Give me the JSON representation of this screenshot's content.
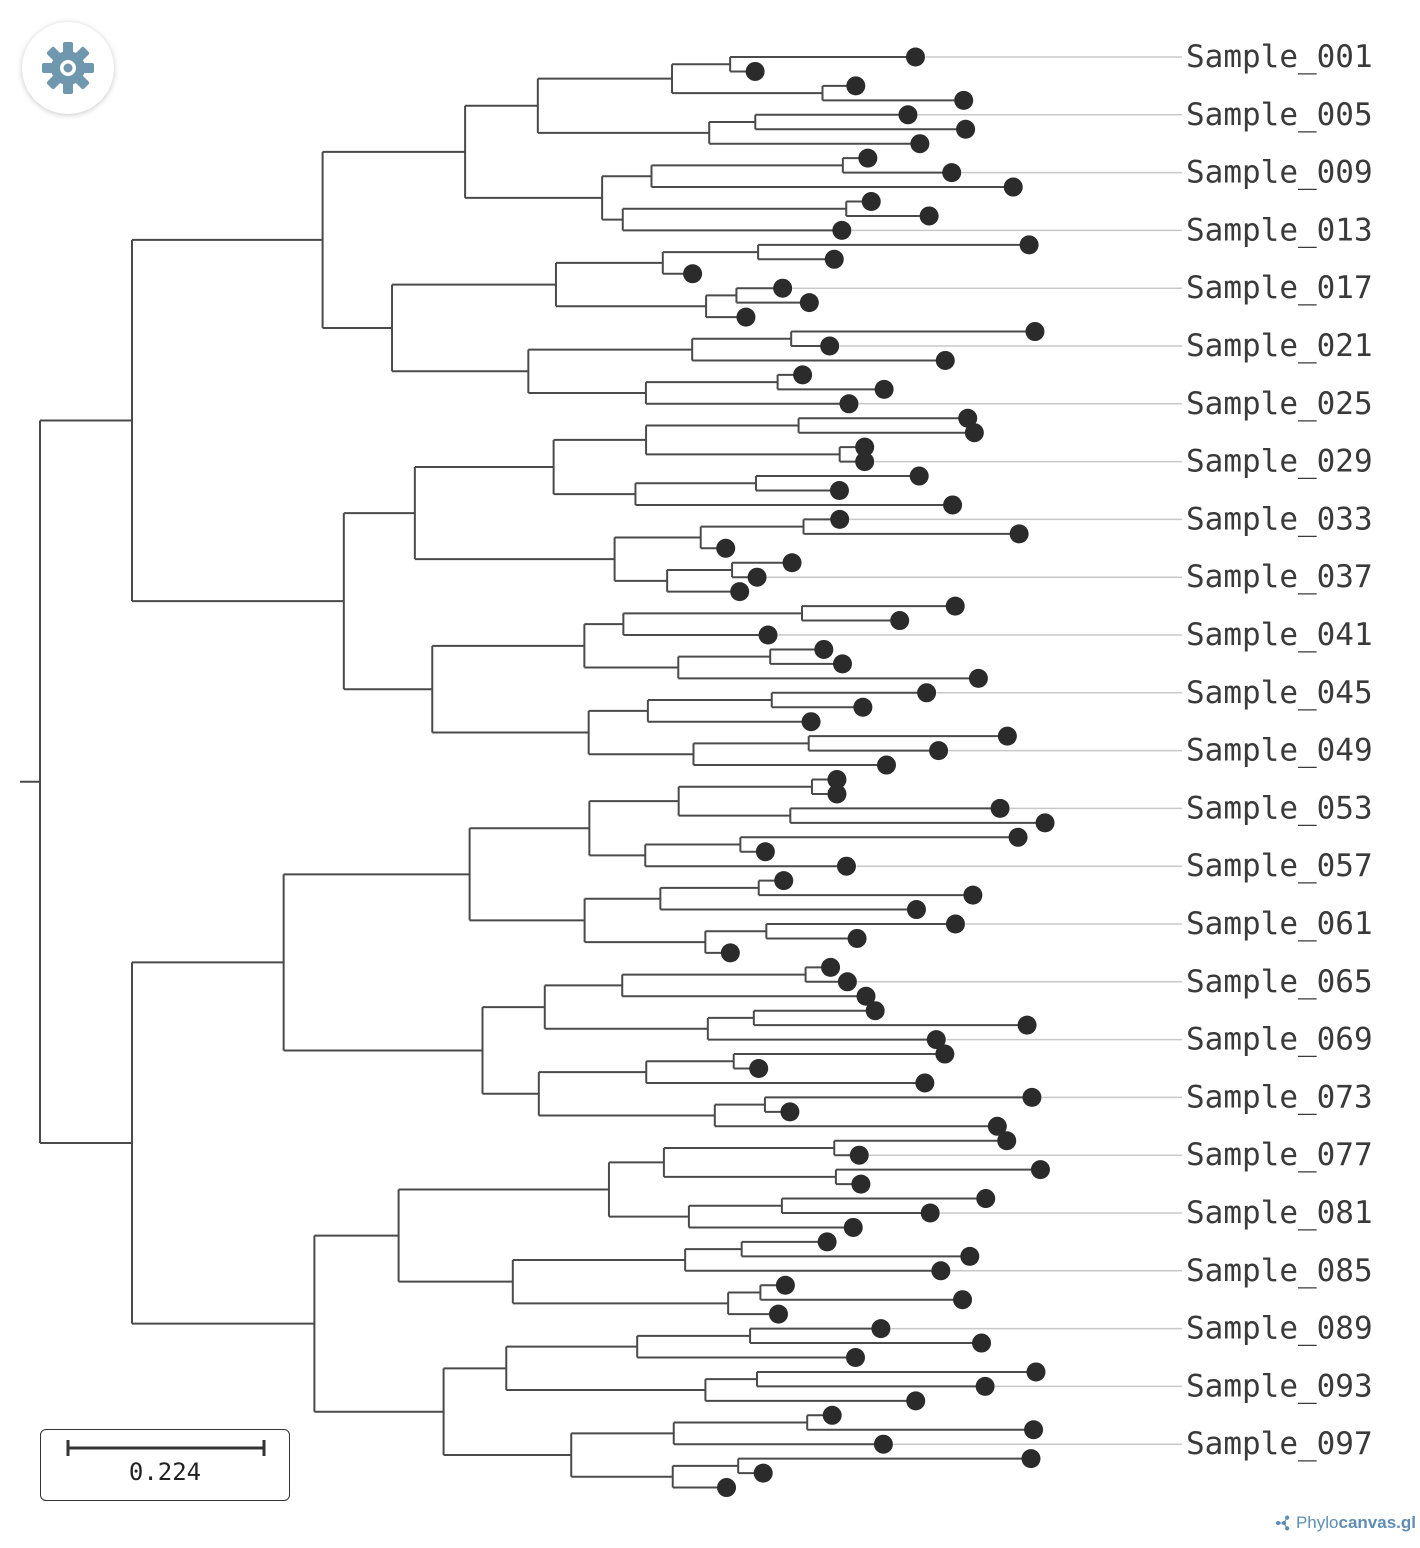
{
  "tree": {
    "leaf_labels": [
      "Sample_001",
      "Sample_005",
      "Sample_009",
      "Sample_013",
      "Sample_017",
      "Sample_021",
      "Sample_025",
      "Sample_029",
      "Sample_033",
      "Sample_037",
      "Sample_041",
      "Sample_045",
      "Sample_049",
      "Sample_053",
      "Sample_057",
      "Sample_061",
      "Sample_065",
      "Sample_069",
      "Sample_073",
      "Sample_077",
      "Sample_081",
      "Sample_085",
      "Sample_089",
      "Sample_093",
      "Sample_097"
    ],
    "leaf_count": 100,
    "label_interval": 4,
    "colors": {
      "branch": "#4a4a4a",
      "leaf_node": "#2b2b2b",
      "guide": "#c8c8c8",
      "label": "#3a3a3a"
    }
  },
  "scale_bar": {
    "value": "0.224"
  },
  "settings": {
    "icon": "gear-icon",
    "color": "#6f97ad"
  },
  "watermark": {
    "prefix": "Phylo",
    "suffix": "canvas.gl",
    "icon": "network-icon"
  }
}
